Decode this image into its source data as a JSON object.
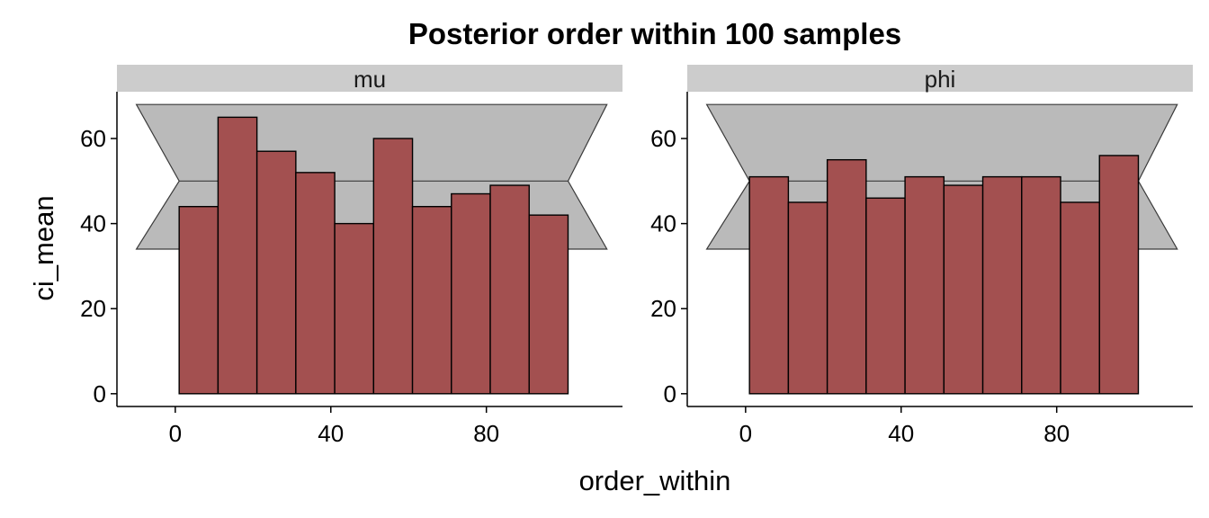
{
  "chart_data": {
    "type": "bar",
    "title": "Posterior order within 100 samples",
    "xlabel": "order_within",
    "ylabel": "ci_mean",
    "xlim": [
      -15,
      115
    ],
    "ylim": [
      -3,
      71
    ],
    "x_ticks": [
      0,
      40,
      80
    ],
    "y_ticks": [
      0,
      20,
      40,
      60
    ],
    "bin_width": 10,
    "bin_start": 1,
    "grid": false,
    "legend": "none",
    "colors": {
      "bar_fill": "#a35050",
      "bar_stroke": "#000000",
      "band_fill": "#bababa",
      "band_stroke": "#3a3a3a",
      "strip_fill": "#cccccc",
      "axis": "#000000"
    },
    "reference_band": {
      "x": [
        -10,
        1,
        101,
        111
      ],
      "outer_upper": 68,
      "outer_lower": 34,
      "inner_upper": 50,
      "inner_lower": 50,
      "mean": 50
    },
    "panels": [
      {
        "name": "mu",
        "values": [
          44,
          65,
          57,
          52,
          40,
          60,
          44,
          47,
          49,
          42
        ]
      },
      {
        "name": "phi",
        "values": [
          51,
          45,
          55,
          46,
          51,
          49,
          51,
          51,
          45,
          56
        ]
      }
    ]
  }
}
